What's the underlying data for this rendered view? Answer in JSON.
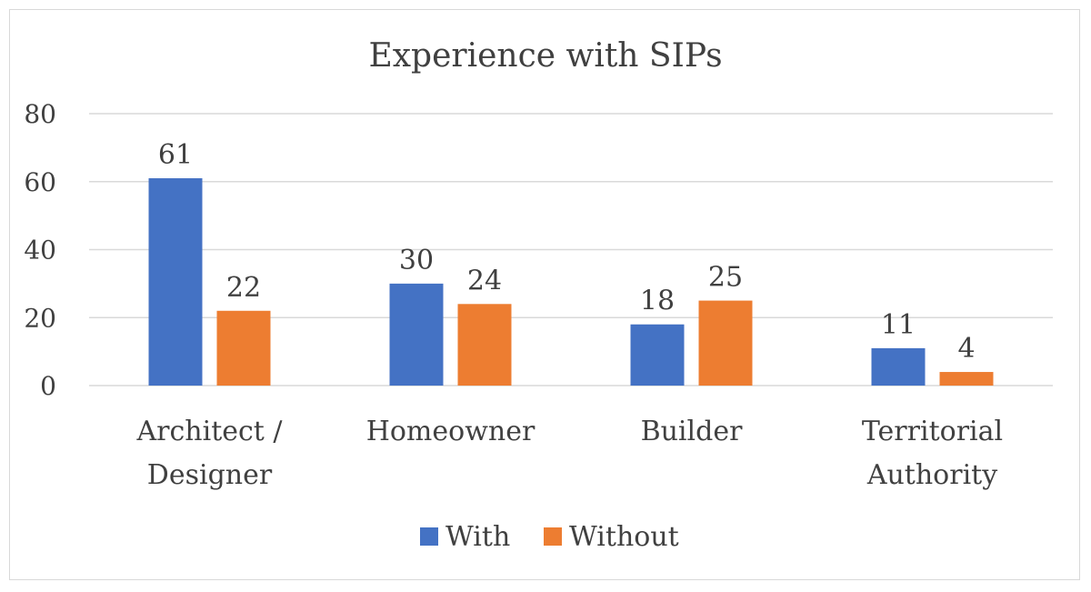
{
  "chart_data": {
    "type": "bar",
    "title": "Experience with SIPs",
    "categories": [
      [
        "Architect /",
        "Designer"
      ],
      [
        "Homeowner"
      ],
      [
        "Builder"
      ],
      [
        "Territorial",
        "Authority"
      ]
    ],
    "series": [
      {
        "name": "With",
        "values": [
          61,
          30,
          18,
          11
        ],
        "color": "#4472C4"
      },
      {
        "name": "Without",
        "values": [
          22,
          24,
          25,
          4
        ],
        "color": "#ED7D31"
      }
    ],
    "ylim": [
      0,
      80
    ],
    "yticks": [
      0,
      20,
      40,
      60,
      80
    ],
    "grid": true,
    "legend": "bottom"
  }
}
